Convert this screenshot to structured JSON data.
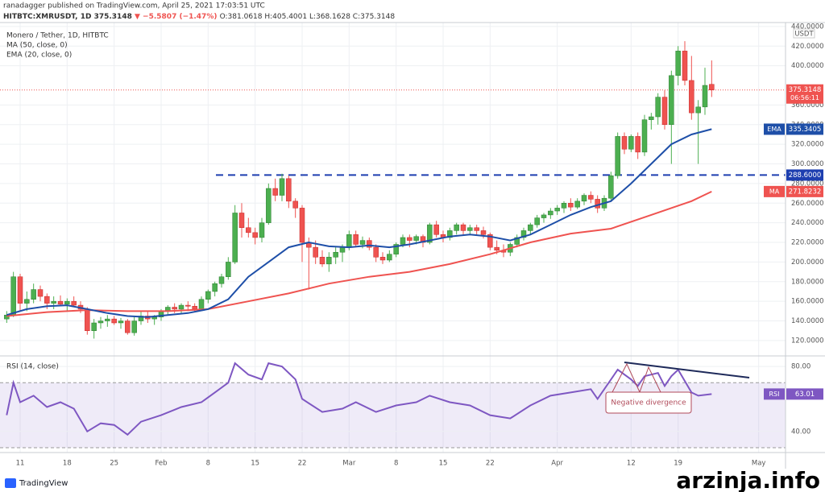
{
  "header": {
    "publisher": "ranadagger published on TradingView.com, April 25, 2021 17:03:51 UTC",
    "symbol": "HITBTC:XMRUSDT, 1D",
    "last": "375.3148",
    "change": "▼ −5.5807 (−1.47%)",
    "ohlc": "O:381.0618 H:405.4001 L:368.1628 C:375.3148"
  },
  "logo": "TradingView",
  "watermark": "arzinja.info",
  "chart_data": [
    {
      "type": "candlestick",
      "title": "Monero / Tether, 1D, HITBTC",
      "up_color": "#4caf50",
      "down_color": "#ef5350",
      "unit": "USDT",
      "categories": [
        "2021-01-09",
        "2021-01-10",
        "2021-01-11",
        "2021-01-12",
        "2021-01-13",
        "2021-01-14",
        "2021-01-15",
        "2021-01-16",
        "2021-01-17",
        "2021-01-18",
        "2021-01-19",
        "2021-01-20",
        "2021-01-21",
        "2021-01-22",
        "2021-01-23",
        "2021-01-24",
        "2021-01-25",
        "2021-01-26",
        "2021-01-27",
        "2021-01-28",
        "2021-01-29",
        "2021-01-30",
        "2021-01-31",
        "2021-02-01",
        "2021-02-02",
        "2021-02-03",
        "2021-02-04",
        "2021-02-05",
        "2021-02-06",
        "2021-02-07",
        "2021-02-08",
        "2021-02-09",
        "2021-02-10",
        "2021-02-11",
        "2021-02-12",
        "2021-02-13",
        "2021-02-14",
        "2021-02-15",
        "2021-02-16",
        "2021-02-17",
        "2021-02-18",
        "2021-02-19",
        "2021-02-20",
        "2021-02-21",
        "2021-02-22",
        "2021-02-23",
        "2021-02-24",
        "2021-02-25",
        "2021-02-26",
        "2021-02-27",
        "2021-02-28",
        "2021-03-01",
        "2021-03-02",
        "2021-03-03",
        "2021-03-04",
        "2021-03-05",
        "2021-03-06",
        "2021-03-07",
        "2021-03-08",
        "2021-03-09",
        "2021-03-10",
        "2021-03-11",
        "2021-03-12",
        "2021-03-13",
        "2021-03-14",
        "2021-03-15",
        "2021-03-16",
        "2021-03-17",
        "2021-03-18",
        "2021-03-19",
        "2021-03-20",
        "2021-03-21",
        "2021-03-22",
        "2021-03-23",
        "2021-03-24",
        "2021-03-25",
        "2021-03-26",
        "2021-03-27",
        "2021-03-28",
        "2021-03-29",
        "2021-03-30",
        "2021-03-31",
        "2021-04-01",
        "2021-04-02",
        "2021-04-03",
        "2021-04-04",
        "2021-04-05",
        "2021-04-06",
        "2021-04-07",
        "2021-04-08",
        "2021-04-09",
        "2021-04-10",
        "2021-04-11",
        "2021-04-12",
        "2021-04-13",
        "2021-04-14",
        "2021-04-15",
        "2021-04-16",
        "2021-04-17",
        "2021-04-18",
        "2021-04-19",
        "2021-04-20",
        "2021-04-21",
        "2021-04-22",
        "2021-04-23",
        "2021-04-24"
      ],
      "open": [
        142,
        146,
        185,
        158,
        162,
        172,
        165,
        158,
        160,
        157,
        160,
        156,
        152,
        130,
        138,
        140,
        142,
        138,
        140,
        128,
        140,
        145,
        142,
        144,
        150,
        154,
        152,
        156,
        155,
        152,
        162,
        170,
        178,
        185,
        200,
        250,
        235,
        230,
        225,
        240,
        275,
        268,
        285,
        262,
        255,
        220,
        215,
        205,
        198,
        205,
        210,
        215,
        228,
        218,
        222,
        215,
        205,
        202,
        208,
        218,
        225,
        222,
        226,
        220,
        238,
        228,
        225,
        232,
        238,
        232,
        235,
        232,
        228,
        215,
        212,
        210,
        218,
        225,
        232,
        238,
        245,
        248,
        252,
        255,
        260,
        256,
        262,
        268,
        264,
        255,
        265,
        288,
        328,
        315,
        328,
        312,
        345,
        348,
        368,
        340,
        390,
        415,
        385,
        352,
        358,
        381.0618
      ],
      "high": [
        150,
        190,
        188,
        170,
        178,
        176,
        168,
        165,
        166,
        163,
        165,
        160,
        154,
        142,
        144,
        146,
        145,
        143,
        142,
        144,
        150,
        150,
        146,
        152,
        156,
        158,
        158,
        160,
        158,
        165,
        172,
        180,
        188,
        205,
        258,
        260,
        245,
        235,
        245,
        280,
        285,
        290,
        288,
        265,
        258,
        225,
        222,
        212,
        210,
        215,
        218,
        232,
        232,
        226,
        225,
        218,
        210,
        212,
        220,
        228,
        228,
        228,
        228,
        240,
        242,
        232,
        235,
        240,
        240,
        238,
        238,
        236,
        230,
        222,
        218,
        220,
        228,
        235,
        240,
        248,
        250,
        255,
        258,
        262,
        265,
        265,
        270,
        272,
        268,
        268,
        292,
        332,
        332,
        330,
        332,
        350,
        352,
        372,
        375,
        395,
        420,
        425,
        410,
        365,
        398,
        405.4001
      ],
      "low": [
        138,
        144,
        150,
        150,
        158,
        160,
        152,
        152,
        155,
        150,
        154,
        148,
        126,
        122,
        132,
        134,
        136,
        132,
        126,
        125,
        136,
        138,
        136,
        140,
        146,
        148,
        148,
        150,
        150,
        150,
        158,
        165,
        174,
        182,
        198,
        225,
        225,
        218,
        220,
        238,
        262,
        262,
        255,
        245,
        200,
        172,
        198,
        195,
        190,
        198,
        200,
        212,
        215,
        214,
        212,
        200,
        198,
        200,
        205,
        215,
        215,
        218,
        215,
        218,
        225,
        220,
        222,
        228,
        228,
        228,
        228,
        224,
        212,
        208,
        205,
        206,
        215,
        222,
        228,
        235,
        240,
        244,
        248,
        250,
        252,
        254,
        258,
        260,
        250,
        252,
        262,
        285,
        310,
        312,
        305,
        308,
        335,
        340,
        335,
        300,
        380,
        380,
        345,
        300,
        350,
        368.1628
      ],
      "close": [
        146,
        185,
        158,
        162,
        172,
        165,
        158,
        160,
        157,
        160,
        156,
        152,
        130,
        138,
        140,
        142,
        138,
        140,
        128,
        140,
        145,
        142,
        144,
        150,
        154,
        152,
        156,
        155,
        152,
        162,
        170,
        178,
        185,
        200,
        250,
        235,
        230,
        225,
        240,
        275,
        268,
        285,
        262,
        255,
        220,
        215,
        205,
        198,
        205,
        210,
        215,
        228,
        218,
        222,
        215,
        205,
        202,
        208,
        218,
        225,
        222,
        226,
        220,
        238,
        228,
        225,
        232,
        238,
        232,
        235,
        232,
        228,
        215,
        212,
        210,
        218,
        225,
        232,
        238,
        245,
        248,
        252,
        255,
        260,
        256,
        262,
        268,
        264,
        255,
        265,
        288,
        328,
        315,
        328,
        312,
        345,
        348,
        368,
        340,
        390,
        415,
        385,
        352,
        358,
        380,
        375.3148
      ],
      "last_label": "375.3148",
      "countdown": "06:56:11",
      "series": [
        {
          "name": "MA (50, close, 0)",
          "short_name": "MA",
          "color": "#ef5350",
          "last_label": "271.8232",
          "x": [
            "2021-01-09",
            "2021-01-15",
            "2021-01-21",
            "2021-01-27",
            "2021-02-02",
            "2021-02-08",
            "2021-02-14",
            "2021-02-20",
            "2021-02-26",
            "2021-03-04",
            "2021-03-10",
            "2021-03-16",
            "2021-03-22",
            "2021-03-28",
            "2021-04-03",
            "2021-04-09",
            "2021-04-15",
            "2021-04-21",
            "2021-04-24"
          ],
          "values": [
            145,
            149,
            151,
            150,
            150,
            152,
            160,
            168,
            178,
            185,
            190,
            198,
            208,
            220,
            229,
            234,
            248,
            262,
            271.8232
          ]
        },
        {
          "name": "EMA (20, close, 0)",
          "short_name": "EMA",
          "color": "#1e4fa8",
          "last_label": "335.3405",
          "x": [
            "2021-01-09",
            "2021-01-12",
            "2021-01-15",
            "2021-01-18",
            "2021-01-21",
            "2021-01-24",
            "2021-01-27",
            "2021-01-30",
            "2021-02-02",
            "2021-02-05",
            "2021-02-08",
            "2021-02-11",
            "2021-02-14",
            "2021-02-17",
            "2021-02-20",
            "2021-02-23",
            "2021-02-26",
            "2021-03-01",
            "2021-03-04",
            "2021-03-07",
            "2021-03-10",
            "2021-03-13",
            "2021-03-16",
            "2021-03-19",
            "2021-03-22",
            "2021-03-25",
            "2021-03-28",
            "2021-03-31",
            "2021-04-03",
            "2021-04-06",
            "2021-04-09",
            "2021-04-12",
            "2021-04-15",
            "2021-04-18",
            "2021-04-21",
            "2021-04-24"
          ],
          "values": [
            146,
            152,
            155,
            156,
            152,
            148,
            145,
            144,
            146,
            148,
            152,
            162,
            185,
            200,
            215,
            220,
            216,
            215,
            217,
            215,
            218,
            222,
            226,
            228,
            226,
            222,
            228,
            238,
            248,
            256,
            262,
            280,
            300,
            320,
            330,
            335.3405
          ]
        }
      ],
      "level": {
        "value": 288.6,
        "label": "288.6000",
        "color": "#1e3fb0"
      },
      "ylim": [
        106,
        444
      ],
      "xlim": [
        "2021-01-08",
        "2021-05-05"
      ],
      "yticks": [
        {
          "value": 440,
          "label": "440.0000"
        },
        {
          "value": 420,
          "label": "420.0000"
        },
        {
          "value": 400,
          "label": "400.0000"
        },
        {
          "value": 360,
          "label": "360.0000"
        },
        {
          "value": 340,
          "label": "340.0000"
        },
        {
          "value": 320,
          "label": "320.0000"
        },
        {
          "value": 300,
          "label": "300.0000"
        },
        {
          "value": 280,
          "label": "280.0000"
        },
        {
          "value": 260,
          "label": "260.0000"
        },
        {
          "value": 240,
          "label": "240.0000"
        },
        {
          "value": 220,
          "label": "220.0000"
        },
        {
          "value": 200,
          "label": "200.0000"
        },
        {
          "value": 180,
          "label": "180.0000"
        },
        {
          "value": 160,
          "label": "160.0000"
        },
        {
          "value": 140,
          "label": "140.0000"
        },
        {
          "value": 120,
          "label": "120.0000"
        }
      ],
      "xticks": [
        {
          "value": "2021-01-11",
          "label": "11"
        },
        {
          "value": "2021-01-18",
          "label": "18"
        },
        {
          "value": "2021-01-25",
          "label": "25"
        },
        {
          "value": "2021-02-01",
          "label": "Feb"
        },
        {
          "value": "2021-02-08",
          "label": "8"
        },
        {
          "value": "2021-02-15",
          "label": "15"
        },
        {
          "value": "2021-02-22",
          "label": "22"
        },
        {
          "value": "2021-03-01",
          "label": "Mar"
        },
        {
          "value": "2021-03-08",
          "label": "8"
        },
        {
          "value": "2021-03-15",
          "label": "15"
        },
        {
          "value": "2021-03-22",
          "label": "22"
        },
        {
          "value": "2021-04-01",
          "label": "Apr"
        },
        {
          "value": "2021-04-12",
          "label": "12"
        },
        {
          "value": "2021-04-19",
          "label": "19"
        },
        {
          "value": "2021-05-01",
          "label": "May"
        }
      ],
      "grid": true
    },
    {
      "type": "line",
      "series": [
        {
          "name": "RSI (14, close)",
          "short_name": "RSI",
          "color": "#7e57c2",
          "last_label": "63.01",
          "x": [
            "2021-01-09",
            "2021-01-10",
            "2021-01-11",
            "2021-01-13",
            "2021-01-15",
            "2021-01-17",
            "2021-01-19",
            "2021-01-21",
            "2021-01-23",
            "2021-01-25",
            "2021-01-27",
            "2021-01-29",
            "2021-02-01",
            "2021-02-04",
            "2021-02-07",
            "2021-02-09",
            "2021-02-11",
            "2021-02-12",
            "2021-02-14",
            "2021-02-16",
            "2021-02-17",
            "2021-02-19",
            "2021-02-21",
            "2021-02-22",
            "2021-02-25",
            "2021-02-28",
            "2021-03-02",
            "2021-03-05",
            "2021-03-08",
            "2021-03-11",
            "2021-03-13",
            "2021-03-16",
            "2021-03-19",
            "2021-03-22",
            "2021-03-25",
            "2021-03-28",
            "2021-03-31",
            "2021-04-03",
            "2021-04-06",
            "2021-04-07",
            "2021-04-10",
            "2021-04-12",
            "2021-04-13",
            "2021-04-14",
            "2021-04-16",
            "2021-04-17",
            "2021-04-18",
            "2021-04-19",
            "2021-04-21",
            "2021-04-22",
            "2021-04-24"
          ],
          "values": [
            50,
            70,
            58,
            62,
            55,
            58,
            54,
            40,
            45,
            44,
            38,
            46,
            50,
            55,
            58,
            64,
            70,
            82,
            75,
            72,
            82,
            80,
            72,
            60,
            52,
            54,
            58,
            52,
            56,
            58,
            62,
            58,
            56,
            50,
            48,
            56,
            62,
            64,
            66,
            60,
            78,
            72,
            68,
            74,
            76,
            68,
            74,
            78,
            64,
            62,
            63.01
          ]
        }
      ],
      "bands": [
        30,
        70
      ],
      "ylim": [
        28,
        85
      ],
      "yticks": [
        {
          "value": 80,
          "label": "80.00"
        },
        {
          "value": 40,
          "label": "40.00"
        }
      ],
      "annotation": "Negative divergence"
    }
  ]
}
